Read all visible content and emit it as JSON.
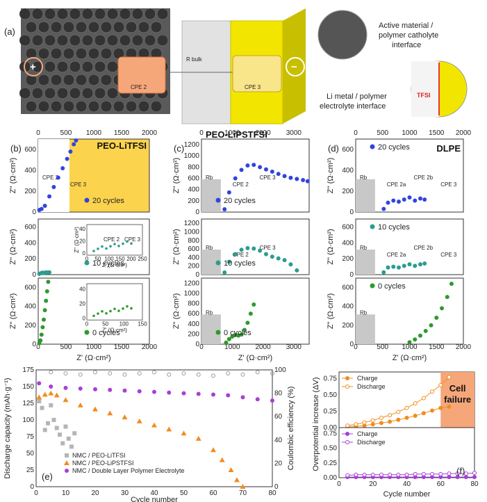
{
  "panel_a": {
    "label": "(a)",
    "callout_top": [
      "Active material /",
      "polymer catholyte",
      "interface"
    ],
    "callout_bottom": [
      "Li metal / polymer",
      "electrolyte interface"
    ],
    "cpe2": "CPE 2",
    "cpe3": "CPE 3",
    "rbulk": "R bulk",
    "tfsi": "TFSI",
    "plus": "+",
    "minus": "−",
    "colors": {
      "yellow": "#f2e600",
      "grey": "#dcdcdc",
      "orange": "#f5a77a"
    }
  },
  "chart_data": [
    {
      "id": "b",
      "type": "scatter",
      "label": "(b)",
      "title": "PEO-LiTFSI",
      "x_ticks": [
        "0",
        "500",
        "1000",
        "1500",
        "2000"
      ],
      "xlim": [
        0,
        2000
      ],
      "xlabel": "Z' (Ω·cm²)",
      "ylabel": "Z'' (Ω·cm²)",
      "rows": [
        {
          "name": "20 cycles",
          "color": "#3344dd",
          "ylim": [
            0,
            700
          ],
          "y_ticks": [
            "0",
            "200",
            "400",
            "600"
          ],
          "annotations": [
            "CPE 2",
            "CPE 3"
          ],
          "fill": "#fcd34d",
          "x": [
            20,
            60,
            120,
            200,
            280,
            360,
            440,
            520,
            580,
            640,
            680
          ],
          "y": [
            20,
            30,
            60,
            150,
            240,
            330,
            420,
            510,
            580,
            650,
            700
          ]
        },
        {
          "name": "10 cycles",
          "color": "#2a9d8f",
          "ylim": [
            0,
            700
          ],
          "y_ticks": [
            "0",
            "200",
            "400",
            "600"
          ],
          "inset": {
            "x_ticks": [
              "0",
              "50",
              "100",
              "150",
              "200",
              "250"
            ],
            "y_ticks": [
              "0",
              "20",
              "40"
            ],
            "xlabel": "Z' (Ω·cm²)",
            "ylabel": "Z'' (Ω·cm²)",
            "annotations": [
              "CPE 2",
              "CPE 3"
            ]
          },
          "x": [
            20,
            50,
            80,
            110,
            140,
            170,
            200
          ],
          "y": [
            10,
            20,
            25,
            22,
            28,
            26,
            30
          ]
        },
        {
          "name": "0 cycles",
          "color": "#2e9a2e",
          "ylim": [
            0,
            700
          ],
          "y_ticks": [
            "0",
            "200",
            "400",
            "600"
          ],
          "inset": {
            "x_ticks": [
              "0",
              "50",
              "100",
              "150"
            ],
            "y_ticks": [
              "0",
              "20",
              "40"
            ],
            "xlabel": "Z' (Ω·cm²)"
          },
          "x": [
            20,
            40,
            60,
            80,
            100,
            120,
            140,
            160,
            180
          ],
          "y": [
            10,
            40,
            100,
            180,
            260,
            360,
            460,
            560,
            660
          ]
        }
      ]
    },
    {
      "id": "c",
      "type": "scatter",
      "label": "(c)",
      "title": "PEO-LiPSTFSI",
      "x_ticks": [
        "0",
        "1000",
        "2000",
        "3000"
      ],
      "xlim": [
        0,
        3500
      ],
      "xlabel": "Z' (Ω·cm²)",
      "ylabel": "Z'' (Ω·cm²)",
      "rows": [
        {
          "name": "20 cycles",
          "color": "#3344dd",
          "ylim": [
            0,
            1300
          ],
          "y_ticks": [
            "0",
            "200",
            "400",
            "600",
            "800",
            "1000",
            "1200"
          ],
          "annotations": [
            "Rb",
            "CPE 2",
            "CPE 3"
          ],
          "x": [
            750,
            900,
            1100,
            1300,
            1500,
            1700,
            1900,
            2100,
            2300,
            2500,
            2700,
            2900,
            3100,
            3300,
            3450
          ],
          "y": [
            50,
            350,
            600,
            750,
            830,
            840,
            800,
            760,
            720,
            680,
            640,
            610,
            590,
            570,
            550
          ]
        },
        {
          "name": "10 cycles",
          "color": "#2a9d8f",
          "ylim": [
            0,
            1300
          ],
          "y_ticks": [
            "0",
            "200",
            "400",
            "600",
            "800",
            "1000",
            "1200"
          ],
          "annotations": [
            "Rb",
            "CPE 2",
            "CPE 3"
          ],
          "x": [
            750,
            900,
            1100,
            1300,
            1500,
            1700,
            1900,
            2100,
            2300,
            2500,
            2700,
            2900,
            3100
          ],
          "y": [
            50,
            300,
            480,
            580,
            620,
            610,
            560,
            480,
            420,
            380,
            340,
            240,
            100
          ]
        },
        {
          "name": "0 cycles",
          "color": "#2e9a2e",
          "ylim": [
            0,
            1300
          ],
          "y_ticks": [
            "0",
            "200",
            "400",
            "600",
            "800",
            "1000",
            "1200"
          ],
          "annotations": [
            "Rb"
          ],
          "x": [
            800,
            900,
            1000,
            1100,
            1200,
            1300,
            1400,
            1500,
            1600,
            1700
          ],
          "y": [
            30,
            100,
            150,
            180,
            170,
            190,
            280,
            420,
            600,
            780
          ]
        }
      ]
    },
    {
      "id": "d",
      "type": "scatter",
      "label": "(d)",
      "title": "DLPE",
      "x_ticks": [
        "0",
        "500",
        "1000",
        "1500",
        "2000"
      ],
      "xlim": [
        0,
        2000
      ],
      "xlabel": "Z' (Ω·cm²)",
      "ylabel": "Z'' (Ω·cm²)",
      "rows": [
        {
          "name": "20 cycles",
          "color": "#3344dd",
          "ylim": [
            0,
            700
          ],
          "y_ticks": [
            "0",
            "200",
            "400",
            "600"
          ],
          "annotations": [
            "Rb",
            "CPE 2a",
            "CPE 2b",
            "CPE 3"
          ],
          "x": [
            520,
            600,
            700,
            800,
            900,
            1000,
            1100,
            1200,
            1280
          ],
          "y": [
            30,
            90,
            110,
            100,
            120,
            140,
            110,
            130,
            120
          ]
        },
        {
          "name": "10 cycles",
          "color": "#2a9d8f",
          "ylim": [
            0,
            700
          ],
          "y_ticks": [
            "0",
            "200",
            "400",
            "600"
          ],
          "annotations": [
            "Rb",
            "CPE 2a",
            "CPE 2b",
            "CPE 3"
          ],
          "x": [
            520,
            600,
            700,
            800,
            900,
            1000,
            1100,
            1200,
            1280
          ],
          "y": [
            30,
            90,
            100,
            90,
            110,
            130,
            110,
            130,
            140
          ]
        },
        {
          "name": "0 cycles",
          "color": "#2e9a2e",
          "ylim": [
            0,
            700
          ],
          "y_ticks": [
            "0",
            "200",
            "400",
            "600"
          ],
          "annotations": [
            "Rb"
          ],
          "x": [
            1000,
            1100,
            1200,
            1300,
            1400,
            1500,
            1600,
            1700,
            1780
          ],
          "y": [
            20,
            50,
            90,
            140,
            200,
            280,
            380,
            500,
            640
          ]
        }
      ]
    },
    {
      "id": "e",
      "type": "line",
      "label": "(e)",
      "xlabel": "Cycle number",
      "ylabel": "Discharge capacity (mAh·g⁻¹)",
      "ylabel_right": "Coulombic efficiency (%)",
      "xlim": [
        0,
        80
      ],
      "ylim": [
        0,
        175
      ],
      "ylim_right": [
        0,
        100
      ],
      "x_ticks": [
        "0",
        "10",
        "20",
        "30",
        "40",
        "50",
        "60",
        "70",
        "80"
      ],
      "y_ticks": [
        "0",
        "25",
        "50",
        "75",
        "100",
        "125",
        "150",
        "175"
      ],
      "y_ticks_right": [
        "0",
        "20",
        "40",
        "60",
        "80",
        "100"
      ],
      "legend_position": "bottom-left",
      "series": [
        {
          "name": "NMC / PEO-LiTFSI",
          "color": "#b5b5b5",
          "marker": "square",
          "x": [
            1,
            2,
            3,
            4,
            5,
            6,
            7,
            8,
            9,
            10,
            11,
            12,
            13
          ],
          "y": [
            128,
            118,
            85,
            95,
            122,
            100,
            88,
            78,
            65,
            90,
            72,
            60,
            80
          ]
        },
        {
          "name": "NMC / PEO-LiPSTFSI",
          "color": "#f28c1e",
          "marker": "triangle",
          "x": [
            1,
            3,
            5,
            7,
            10,
            15,
            20,
            25,
            30,
            35,
            40,
            45,
            50,
            55,
            60,
            63,
            66,
            68,
            70
          ],
          "y": [
            134,
            138,
            140,
            137,
            130,
            122,
            116,
            110,
            104,
            98,
            92,
            86,
            80,
            72,
            55,
            40,
            25,
            10,
            0
          ]
        },
        {
          "name": "NMC / Double Layer Polymer Electrolyte",
          "color": "#a83fd6",
          "marker": "circle",
          "x": [
            1,
            5,
            10,
            15,
            20,
            25,
            30,
            35,
            40,
            45,
            50,
            55,
            60,
            65,
            70,
            75,
            80
          ],
          "y": [
            155,
            150,
            148,
            147,
            146,
            145,
            144,
            143,
            142,
            141,
            140,
            139,
            138,
            137,
            134,
            131,
            129
          ]
        }
      ],
      "efficiency_series": {
        "name": "Coulombic efficiency",
        "color": "#9a9a9a",
        "x": [
          5,
          10,
          15,
          20,
          25,
          30,
          35,
          40,
          45,
          50,
          55,
          60,
          65,
          70,
          75,
          80
        ],
        "y": [
          98,
          97,
          96,
          98,
          97,
          96,
          97,
          98,
          96,
          97,
          96,
          95,
          97,
          96,
          98,
          97
        ]
      }
    },
    {
      "id": "f",
      "type": "line",
      "label": "(f)",
      "xlabel": "Cycle number",
      "ylabel": "Overpotential increase (ΔV)",
      "xlim": [
        0,
        80
      ],
      "x_ticks": [
        "0",
        "20",
        "40",
        "60",
        "80"
      ],
      "y_ticks": [
        "0.00",
        "0.25",
        "0.50",
        "0.75"
      ],
      "annotation": [
        "Cell",
        "failure"
      ],
      "top": {
        "ylim": [
          0,
          0.85
        ],
        "series": [
          {
            "name": "Charge",
            "color": "#f28c1e",
            "filled": true,
            "x": [
              5,
              10,
              15,
              20,
              25,
              30,
              35,
              40,
              45,
              50,
              55,
              60,
              65
            ],
            "y": [
              0.01,
              0.02,
              0.03,
              0.05,
              0.07,
              0.09,
              0.12,
              0.15,
              0.18,
              0.22,
              0.26,
              0.3,
              0.32
            ]
          },
          {
            "name": "Discharge",
            "color": "#f28c1e",
            "filled": false,
            "x": [
              5,
              10,
              15,
              20,
              25,
              30,
              35,
              40,
              45,
              50,
              55,
              60,
              65
            ],
            "y": [
              0.03,
              0.05,
              0.08,
              0.11,
              0.15,
              0.19,
              0.24,
              0.3,
              0.37,
              0.45,
              0.55,
              0.65,
              0.77
            ]
          }
        ]
      },
      "bottom": {
        "ylim": [
          0,
          0.85
        ],
        "series": [
          {
            "name": "Charge",
            "color": "#a83fd6",
            "filled": true,
            "x": [
              5,
              10,
              15,
              20,
              25,
              30,
              35,
              40,
              45,
              50,
              55,
              60,
              65,
              70,
              75,
              80
            ],
            "y": [
              0.01,
              0.01,
              0.01,
              0.01,
              0.01,
              0.01,
              0.01,
              0.01,
              0.01,
              0.01,
              0.01,
              0.01,
              0.01,
              0.01,
              0.01,
              0.01
            ]
          },
          {
            "name": "Discharge",
            "color": "#a83fd6",
            "filled": false,
            "x": [
              5,
              10,
              15,
              20,
              25,
              30,
              35,
              40,
              45,
              50,
              55,
              60,
              65,
              70,
              75,
              80
            ],
            "y": [
              0.04,
              0.05,
              0.05,
              0.05,
              0.05,
              0.05,
              0.05,
              0.05,
              0.06,
              0.06,
              0.06,
              0.06,
              0.07,
              0.07,
              0.07,
              0.08
            ]
          }
        ]
      }
    }
  ]
}
